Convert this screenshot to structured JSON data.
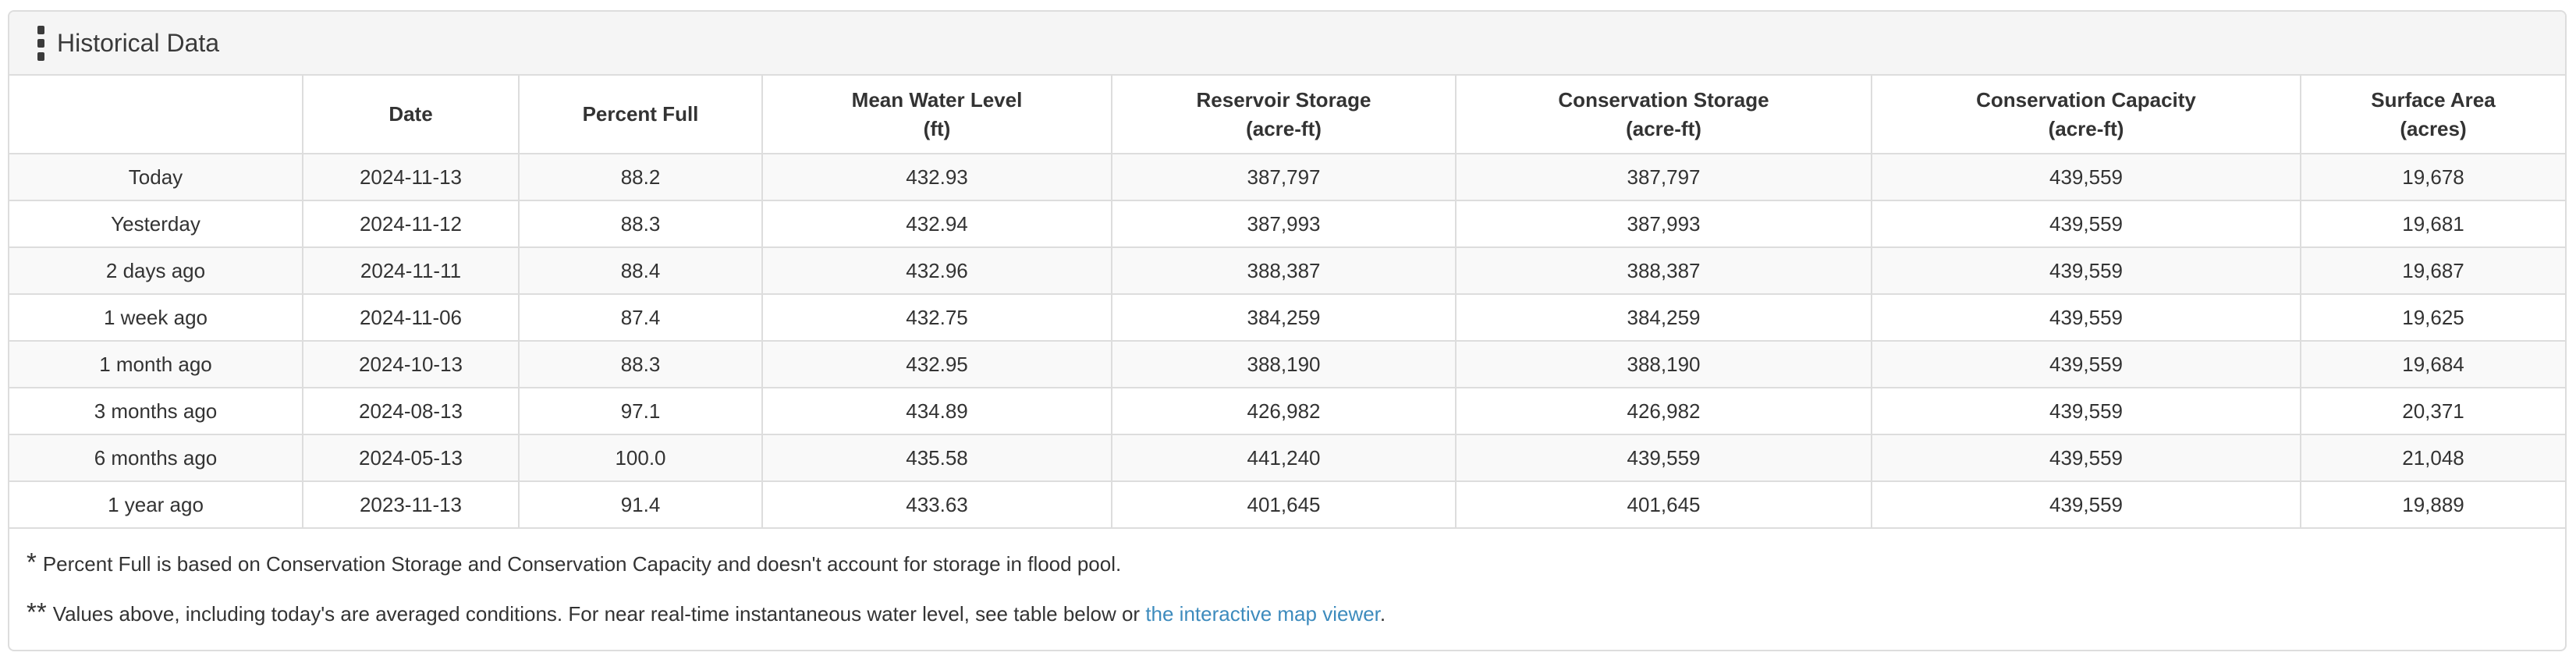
{
  "panel": {
    "title": "Historical Data",
    "grip_icon": "vertical-grip-dots-icon"
  },
  "colors": {
    "link_blue": "#3d8bbd",
    "stripe_gray": "#f9f9f9",
    "header_bar_gray": "#f5f5f5",
    "border_gray": "#dddddd",
    "text_dark": "#333333"
  },
  "table": {
    "columns": [
      {
        "label": "",
        "unit": "",
        "key": "row-label"
      },
      {
        "label": "Date",
        "unit": "",
        "key": "date"
      },
      {
        "label": "Percent Full",
        "unit": "",
        "key": "percent-full"
      },
      {
        "label": "Mean Water Level",
        "unit": "(ft)",
        "key": "mean-water-level"
      },
      {
        "label": "Reservoir Storage",
        "unit": "(acre-ft)",
        "key": "reservoir-storage"
      },
      {
        "label": "Conservation Storage",
        "unit": "(acre-ft)",
        "key": "conservation-storage"
      },
      {
        "label": "Conservation Capacity",
        "unit": "(acre-ft)",
        "key": "conservation-capacity"
      },
      {
        "label": "Surface Area",
        "unit": "(acres)",
        "key": "surface-area"
      }
    ],
    "rows": [
      [
        "Today",
        "2024-11-13",
        "88.2",
        "432.93",
        "387,797",
        "387,797",
        "439,559",
        "19,678"
      ],
      [
        "Yesterday",
        "2024-11-12",
        "88.3",
        "432.94",
        "387,993",
        "387,993",
        "439,559",
        "19,681"
      ],
      [
        "2 days ago",
        "2024-11-11",
        "88.4",
        "432.96",
        "388,387",
        "388,387",
        "439,559",
        "19,687"
      ],
      [
        "1 week ago",
        "2024-11-06",
        "87.4",
        "432.75",
        "384,259",
        "384,259",
        "439,559",
        "19,625"
      ],
      [
        "1 month ago",
        "2024-10-13",
        "88.3",
        "432.95",
        "388,190",
        "388,190",
        "439,559",
        "19,684"
      ],
      [
        "3 months ago",
        "2024-08-13",
        "97.1",
        "434.89",
        "426,982",
        "426,982",
        "439,559",
        "20,371"
      ],
      [
        "6 months ago",
        "2024-05-13",
        "100.0",
        "435.58",
        "441,240",
        "439,559",
        "439,559",
        "21,048"
      ],
      [
        "1 year ago",
        "2023-11-13",
        "91.4",
        "433.63",
        "401,645",
        "401,645",
        "439,559",
        "19,889"
      ]
    ]
  },
  "footnotes": [
    {
      "marker": "*",
      "text": "Percent Full is based on Conservation Storage and Conservation Capacity and doesn't account for storage in flood pool."
    },
    {
      "marker": "**",
      "text_before": "Values above, including today's are averaged conditions. For near real-time instantaneous water level, see table below or ",
      "link_text": "the interactive map viewer",
      "text_after": "."
    }
  ]
}
